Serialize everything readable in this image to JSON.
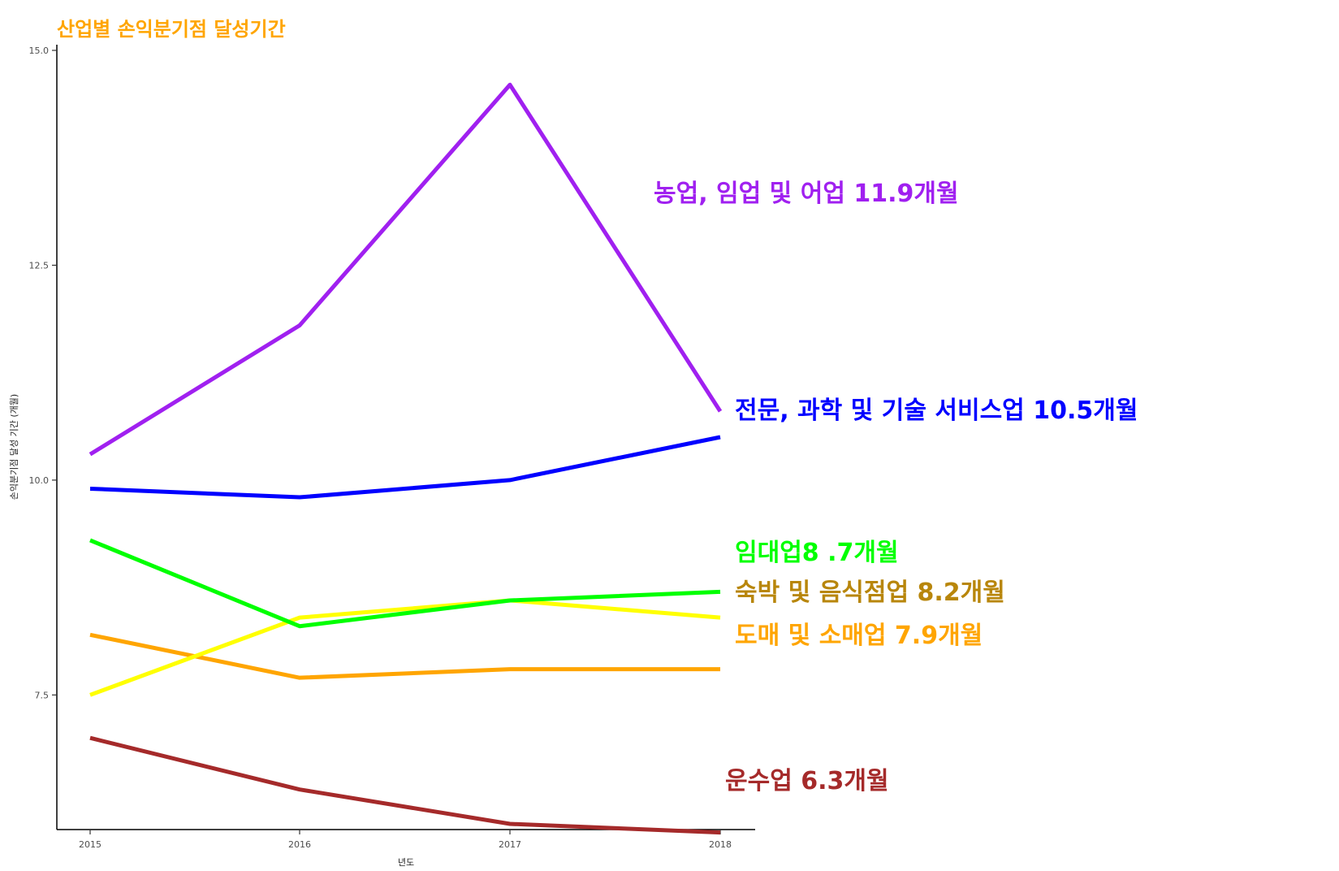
{
  "chart_data": {
    "type": "line",
    "title": "산업별 손익분기점 달성기간",
    "title_color": "#FFA500",
    "xlabel": "년도",
    "ylabel": "손익분기점 달성 기간 (개월)",
    "x": [
      2015,
      2016,
      2017,
      2018
    ],
    "x_tick_labels": [
      "2015",
      "2016",
      "2017",
      "2018"
    ],
    "y_ticks": [
      7.5,
      10.0,
      12.5,
      15.0
    ],
    "y_tick_labels": [
      "7.5",
      "10.0",
      "12.5",
      "15.0"
    ],
    "ylim": [
      6.0,
      15.0
    ],
    "grid": false,
    "legend": "direct labels at line ends",
    "series": [
      {
        "values": [
          10.3,
          11.8,
          14.6,
          10.8
        ],
        "color": "#A020F0",
        "label": "농업, 임업 및 어업 11.9개월",
        "label_color": "#A020F0"
      },
      {
        "values": [
          9.9,
          9.8,
          10.0,
          10.5
        ],
        "color": "#0000FF",
        "label": "전문, 과학 및 기술 서비스업 10.5개월",
        "label_color": "#0000FF"
      },
      {
        "values": [
          9.3,
          8.3,
          8.6,
          8.7
        ],
        "color": "#00FF00",
        "label": "임대업8 .7개월",
        "label_color": "#00FF00"
      },
      {
        "values": [
          7.5,
          8.4,
          8.6,
          8.4
        ],
        "color": "#FFFF00",
        "label": "숙박 및 음식점업 8.2개월",
        "label_color": "#B8860B"
      },
      {
        "values": [
          8.2,
          7.7,
          7.8,
          7.8
        ],
        "color": "#FFA500",
        "label": "도매 및 소매업 7.9개월",
        "label_color": "#FFA500"
      },
      {
        "values": [
          7.0,
          6.4,
          6.0,
          5.9
        ],
        "color": "#A52A2A",
        "label": "운수업 6.3개월",
        "label_color": "#A52A2A"
      }
    ]
  }
}
